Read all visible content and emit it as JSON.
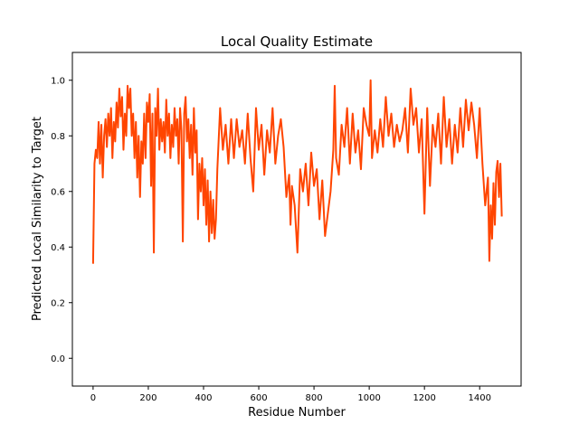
{
  "chart_data": {
    "type": "line",
    "title": "Local Quality Estimate",
    "xlabel": "Residue Number",
    "ylabel": "Predicted Local Similarity to Target",
    "xlim": [
      -75,
      1550
    ],
    "ylim": [
      -0.1,
      1.1
    ],
    "xticks": [
      0,
      200,
      400,
      600,
      800,
      1000,
      1200,
      1400
    ],
    "yticks": [
      0.0,
      0.2,
      0.4,
      0.6,
      0.8,
      1.0
    ],
    "grid": false,
    "line_color": "#ff4500",
    "series": [
      {
        "name": "",
        "x": [
          0,
          5,
          10,
          15,
          20,
          25,
          30,
          35,
          40,
          45,
          50,
          55,
          60,
          65,
          70,
          75,
          80,
          85,
          90,
          95,
          100,
          105,
          110,
          115,
          120,
          125,
          130,
          135,
          140,
          145,
          150,
          155,
          160,
          165,
          170,
          175,
          180,
          185,
          190,
          195,
          200,
          205,
          210,
          215,
          220,
          225,
          230,
          235,
          240,
          245,
          250,
          255,
          260,
          265,
          270,
          275,
          280,
          285,
          290,
          295,
          300,
          305,
          310,
          315,
          320,
          325,
          330,
          335,
          340,
          345,
          350,
          355,
          360,
          365,
          370,
          375,
          380,
          385,
          390,
          395,
          400,
          405,
          410,
          415,
          420,
          425,
          430,
          435,
          440,
          445,
          450,
          460,
          470,
          480,
          490,
          500,
          510,
          520,
          530,
          540,
          550,
          560,
          570,
          580,
          590,
          600,
          610,
          620,
          630,
          640,
          650,
          660,
          670,
          680,
          690,
          700,
          710,
          715,
          720,
          730,
          740,
          750,
          760,
          770,
          780,
          790,
          800,
          810,
          820,
          830,
          840,
          850,
          860,
          870,
          875,
          880,
          890,
          900,
          910,
          920,
          930,
          940,
          950,
          960,
          970,
          980,
          990,
          1000,
          1005,
          1010,
          1020,
          1030,
          1040,
          1050,
          1060,
          1070,
          1080,
          1090,
          1100,
          1110,
          1120,
          1130,
          1140,
          1150,
          1160,
          1170,
          1180,
          1190,
          1200,
          1210,
          1220,
          1230,
          1240,
          1250,
          1260,
          1270,
          1280,
          1290,
          1300,
          1310,
          1320,
          1330,
          1340,
          1350,
          1360,
          1370,
          1380,
          1390,
          1400,
          1410,
          1420,
          1430,
          1435,
          1440,
          1445,
          1450,
          1455,
          1460,
          1465,
          1470,
          1475,
          1480
        ],
        "values": [
          0.34,
          0.7,
          0.75,
          0.72,
          0.85,
          0.7,
          0.84,
          0.65,
          0.8,
          0.86,
          0.76,
          0.88,
          0.8,
          0.9,
          0.72,
          0.85,
          0.78,
          0.92,
          0.83,
          0.97,
          0.87,
          0.94,
          0.75,
          0.88,
          0.8,
          0.98,
          0.9,
          0.97,
          0.8,
          0.88,
          0.72,
          0.85,
          0.65,
          0.8,
          0.58,
          0.78,
          0.7,
          0.88,
          0.72,
          0.92,
          0.85,
          0.95,
          0.62,
          0.88,
          0.38,
          0.9,
          0.8,
          0.97,
          0.75,
          0.86,
          0.78,
          0.85,
          0.74,
          0.93,
          0.8,
          0.88,
          0.72,
          0.84,
          0.76,
          0.9,
          0.8,
          0.86,
          0.7,
          0.9,
          0.82,
          0.42,
          0.88,
          0.94,
          0.78,
          0.86,
          0.72,
          0.84,
          0.66,
          0.9,
          0.74,
          0.82,
          0.5,
          0.7,
          0.6,
          0.72,
          0.55,
          0.68,
          0.48,
          0.64,
          0.42,
          0.6,
          0.45,
          0.57,
          0.43,
          0.5,
          0.68,
          0.9,
          0.75,
          0.84,
          0.7,
          0.86,
          0.72,
          0.86,
          0.76,
          0.82,
          0.7,
          0.88,
          0.72,
          0.6,
          0.9,
          0.75,
          0.84,
          0.66,
          0.82,
          0.74,
          0.9,
          0.7,
          0.8,
          0.86,
          0.76,
          0.58,
          0.66,
          0.48,
          0.62,
          0.55,
          0.38,
          0.68,
          0.6,
          0.7,
          0.55,
          0.74,
          0.62,
          0.68,
          0.5,
          0.64,
          0.44,
          0.52,
          0.6,
          0.75,
          0.98,
          0.72,
          0.66,
          0.84,
          0.76,
          0.9,
          0.7,
          0.88,
          0.74,
          0.82,
          0.68,
          0.9,
          0.84,
          0.8,
          1.0,
          0.72,
          0.82,
          0.74,
          0.86,
          0.76,
          0.94,
          0.8,
          0.88,
          0.76,
          0.84,
          0.78,
          0.82,
          0.9,
          0.74,
          0.97,
          0.84,
          0.9,
          0.74,
          0.86,
          0.52,
          0.9,
          0.62,
          0.84,
          0.76,
          0.88,
          0.7,
          0.94,
          0.76,
          0.86,
          0.7,
          0.84,
          0.74,
          0.9,
          0.76,
          0.93,
          0.82,
          0.92,
          0.84,
          0.72,
          0.9,
          0.7,
          0.55,
          0.65,
          0.35,
          0.55,
          0.43,
          0.63,
          0.48,
          0.67,
          0.71,
          0.58,
          0.7,
          0.51
        ]
      }
    ]
  }
}
